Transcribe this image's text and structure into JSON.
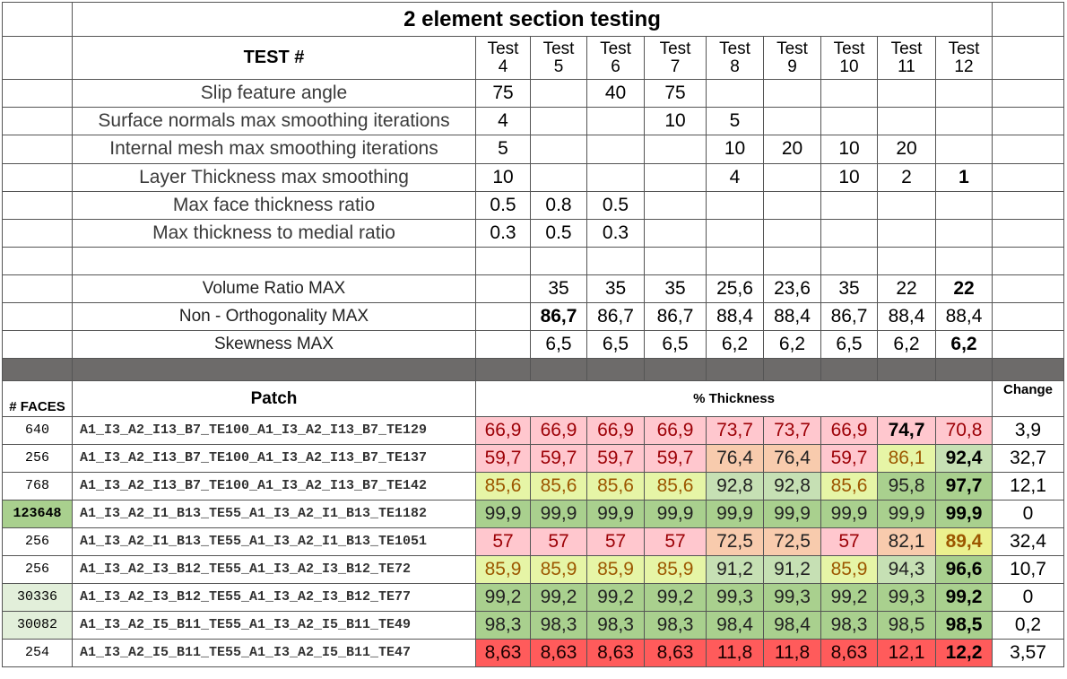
{
  "title": "2 element section testing",
  "test_label": "TEST #",
  "tests": [
    {
      "top": "Test",
      "num": "4"
    },
    {
      "top": "Test",
      "num": "5"
    },
    {
      "top": "Test",
      "num": "6"
    },
    {
      "top": "Test",
      "num": "7"
    },
    {
      "top": "Test",
      "num": "8"
    },
    {
      "top": "Test",
      "num": "9"
    },
    {
      "top": "Test",
      "num": "10"
    },
    {
      "top": "Test",
      "num": "11"
    },
    {
      "top": "Test",
      "num": "12"
    }
  ],
  "params": [
    {
      "label": "Slip feature angle",
      "values": [
        "75",
        "",
        "40",
        "75",
        "",
        "",
        "",
        "",
        ""
      ]
    },
    {
      "label": "Surface normals max smoothing iterations",
      "values": [
        "4",
        "",
        "",
        "10",
        "5",
        "",
        "",
        "",
        ""
      ]
    },
    {
      "label": "Internal mesh max smoothing iterations",
      "values": [
        "5",
        "",
        "",
        "",
        "10",
        "20",
        "10",
        "20",
        ""
      ]
    },
    {
      "label": "Layer Thickness max smoothing",
      "values": [
        "10",
        "",
        "",
        "",
        "4",
        "",
        "10",
        "2",
        "1"
      ]
    },
    {
      "label": "Max face thickness ratio",
      "values": [
        "0.5",
        "0.8",
        "0.5",
        "",
        "",
        "",
        "",
        "",
        ""
      ]
    },
    {
      "label": "Max thickness to medial ratio",
      "values": [
        "0.3",
        "0.5",
        "0.3",
        "",
        "",
        "",
        "",
        "",
        ""
      ]
    }
  ],
  "quality": [
    {
      "label": "Volume Ratio MAX",
      "values": [
        "",
        "35",
        "35",
        "35",
        "25,6",
        "23,6",
        "35",
        "22",
        "22"
      ]
    },
    {
      "label": "Non - Orthogonality MAX",
      "values": [
        "",
        "86,7",
        "86,7",
        "86,7",
        "88,4",
        "88,4",
        "86,7",
        "88,4",
        "88,4"
      ]
    },
    {
      "label": "Skewness MAX",
      "values": [
        "",
        "6,5",
        "6,5",
        "6,5",
        "6,2",
        "6,2",
        "6,5",
        "6,2",
        "6,2"
      ]
    }
  ],
  "header": {
    "faces": "# FACES",
    "patch": "Patch",
    "thickness": "% Thickness",
    "change": "Change"
  },
  "rows": [
    {
      "faces": "640",
      "patch": "A1_I3_A2_I13_B7_TE100_A1_I3_A2_I13_B7_TE129",
      "values": [
        "66,9",
        "66,9",
        "66,9",
        "66,9",
        "73,7",
        "73,7",
        "66,9",
        "74,7",
        "70,8"
      ],
      "classes": [
        "pink",
        "pink",
        "pink",
        "pink",
        "pink",
        "pink",
        "pink",
        "pink",
        "pink"
      ],
      "bold": [
        7
      ],
      "change": "3,9"
    },
    {
      "faces": "256",
      "patch": "A1_I3_A2_I13_B7_TE100_A1_I3_A2_I13_B7_TE137",
      "values": [
        "59,7",
        "59,7",
        "59,7",
        "59,7",
        "76,4",
        "76,4",
        "59,7",
        "86,1",
        "92,4"
      ],
      "classes": [
        "pink",
        "pink",
        "pink",
        "pink",
        "peach",
        "peach",
        "pink",
        "lime",
        "lgreen"
      ],
      "bold": [
        8
      ],
      "change": "32,7"
    },
    {
      "faces": "768",
      "patch": "A1_I3_A2_I13_B7_TE100_A1_I3_A2_I13_B7_TE142",
      "values": [
        "85,6",
        "85,6",
        "85,6",
        "85,6",
        "92,8",
        "92,8",
        "85,6",
        "95,8",
        "97,7"
      ],
      "classes": [
        "lime",
        "lime",
        "lime",
        "lime",
        "lgreen",
        "lgreen",
        "lime",
        "mgreen",
        "mgreen"
      ],
      "bold": [
        8
      ],
      "change": "12,1"
    },
    {
      "faces": "123648",
      "patch": "A1_I3_A2_I1_B13_TE55_A1_I3_A2_I1_B13_TE1182",
      "values": [
        "99,9",
        "99,9",
        "99,9",
        "99,9",
        "99,9",
        "99,9",
        "99,9",
        "99,9",
        "99,9"
      ],
      "classes": [
        "mgreen",
        "mgreen",
        "mgreen",
        "mgreen",
        "mgreen",
        "mgreen",
        "mgreen",
        "mgreen",
        "mgreen"
      ],
      "bold": [
        8
      ],
      "change": "0",
      "facesClass": "ggreen",
      "facesBold": true
    },
    {
      "faces": "256",
      "patch": "A1_I3_A2_I1_B13_TE55_A1_I3_A2_I1_B13_TE1051",
      "values": [
        "57",
        "57",
        "57",
        "57",
        "72,5",
        "72,5",
        "57",
        "82,1",
        "89,4"
      ],
      "classes": [
        "pink",
        "pink",
        "pink",
        "pink",
        "peach",
        "peach",
        "pink",
        "peach",
        "yellow"
      ],
      "bold": [
        8
      ],
      "change": "32,4"
    },
    {
      "faces": "256",
      "patch": "A1_I3_A2_I3_B12_TE55_A1_I3_A2_I3_B12_TE72",
      "values": [
        "85,9",
        "85,9",
        "85,9",
        "85,9",
        "91,2",
        "91,2",
        "85,9",
        "94,3",
        "96,6"
      ],
      "classes": [
        "lime",
        "lime",
        "lime",
        "lime",
        "lgreen",
        "lgreen",
        "lime",
        "lgreen",
        "mgreen"
      ],
      "bold": [
        8
      ],
      "change": "10,7"
    },
    {
      "faces": "30336",
      "patch": "A1_I3_A2_I3_B12_TE55_A1_I3_A2_I3_B12_TE77",
      "values": [
        "99,2",
        "99,2",
        "99,2",
        "99,2",
        "99,3",
        "99,3",
        "99,2",
        "99,3",
        "99,2"
      ],
      "classes": [
        "mgreen",
        "mgreen",
        "mgreen",
        "mgreen",
        "mgreen",
        "mgreen",
        "mgreen",
        "mgreen",
        "mgreen"
      ],
      "bold": [
        8
      ],
      "change": "0",
      "facesClass": "vlgreen"
    },
    {
      "faces": "30082",
      "patch": "A1_I3_A2_I5_B11_TE55_A1_I3_A2_I5_B11_TE49",
      "values": [
        "98,3",
        "98,3",
        "98,3",
        "98,3",
        "98,4",
        "98,4",
        "98,3",
        "98,5",
        "98,5"
      ],
      "classes": [
        "mgreen",
        "mgreen",
        "mgreen",
        "mgreen",
        "mgreen",
        "mgreen",
        "mgreen",
        "mgreen",
        "mgreen"
      ],
      "bold": [
        8
      ],
      "change": "0,2",
      "facesClass": "vlgreen"
    },
    {
      "faces": "254",
      "patch": "A1_I3_A2_I5_B11_TE55_A1_I3_A2_I5_B11_TE47",
      "values": [
        "8,63",
        "8,63",
        "8,63",
        "8,63",
        "11,8",
        "11,8",
        "8,63",
        "12,1",
        "12,2"
      ],
      "classes": [
        "red",
        "red",
        "red",
        "red",
        "red",
        "red",
        "red",
        "red",
        "red"
      ],
      "bold": [
        8
      ],
      "change": "3,57"
    }
  ]
}
